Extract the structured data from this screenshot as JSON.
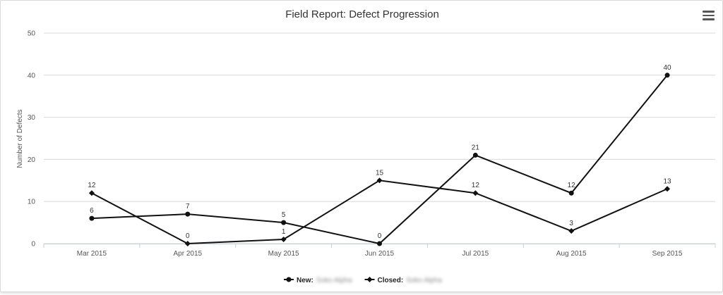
{
  "chart_data": {
    "type": "line",
    "title": "Field Report: Defect Progression",
    "ylabel": "Number of Defects",
    "xlabel": "",
    "categories": [
      "Mar 2015",
      "Apr 2015",
      "May 2015",
      "Jun 2015",
      "Jul 2015",
      "Aug 2015",
      "Sep 2015"
    ],
    "ylim": [
      0,
      50
    ],
    "yticks": [
      0,
      10,
      20,
      30,
      40,
      50
    ],
    "grid": true,
    "legend_position": "bottom-center",
    "series": [
      {
        "name": "New:",
        "name_suffix": "Soko Alpha",
        "marker": "circle",
        "values": [
          6,
          7,
          5,
          0,
          21,
          12,
          40
        ]
      },
      {
        "name": "Closed:",
        "name_suffix": "Soko Alpha",
        "marker": "diamond",
        "values": [
          12,
          0,
          1,
          15,
          12,
          3,
          13
        ]
      }
    ],
    "colors": {
      "line": "#111111",
      "grid": "#d8d8d8",
      "axis_text": "#555555",
      "title": "#333333"
    }
  },
  "toolbar": {
    "menu_icon": "hamburger-menu-icon"
  }
}
